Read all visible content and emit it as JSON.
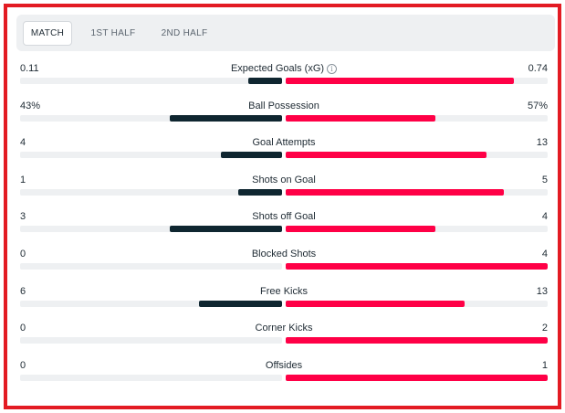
{
  "tabs": [
    {
      "label": "MATCH",
      "active": true
    },
    {
      "label": "1ST HALF",
      "active": false
    },
    {
      "label": "2ND HALF",
      "active": false
    }
  ],
  "colors": {
    "home": "#0f2630",
    "away": "#ff0046",
    "frame": "#e31b23"
  },
  "stats": [
    {
      "label": "Expected Goals (xG)",
      "home": "0.11",
      "away": "0.74",
      "home_share": 0.13,
      "away_share": 0.87,
      "info": true
    },
    {
      "label": "Ball Possession",
      "home": "43%",
      "away": "57%",
      "home_share": 0.43,
      "away_share": 0.57
    },
    {
      "label": "Goal Attempts",
      "home": "4",
      "away": "13",
      "home_share": 0.235,
      "away_share": 0.765
    },
    {
      "label": "Shots on Goal",
      "home": "1",
      "away": "5",
      "home_share": 0.167,
      "away_share": 0.833
    },
    {
      "label": "Shots off Goal",
      "home": "3",
      "away": "4",
      "home_share": 0.429,
      "away_share": 0.571
    },
    {
      "label": "Blocked Shots",
      "home": "0",
      "away": "4",
      "home_share": 0,
      "away_share": 1
    },
    {
      "label": "Free Kicks",
      "home": "6",
      "away": "13",
      "home_share": 0.316,
      "away_share": 0.684
    },
    {
      "label": "Corner Kicks",
      "home": "0",
      "away": "2",
      "home_share": 0,
      "away_share": 1
    },
    {
      "label": "Offsides",
      "home": "0",
      "away": "1",
      "home_share": 0,
      "away_share": 1
    }
  ]
}
